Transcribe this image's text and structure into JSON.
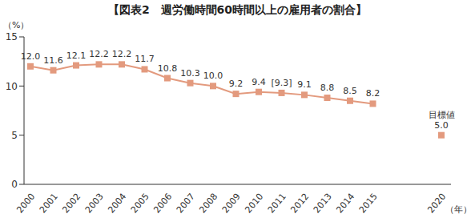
{
  "chart_data": {
    "type": "line",
    "title": "【図表2　週労働時間60時間以上の雇用者の割合】",
    "y_label": "（%）",
    "x_label": "（年）",
    "categories": [
      "2000",
      "2001",
      "2002",
      "2003",
      "2004",
      "2005",
      "2006",
      "2007",
      "2008",
      "2009",
      "2010",
      "2011",
      "2012",
      "2013",
      "2014",
      "2015",
      null,
      null,
      "2020"
    ],
    "values": [
      12.0,
      11.6,
      12.1,
      12.2,
      12.2,
      11.7,
      10.8,
      10.3,
      10.0,
      9.2,
      9.4,
      9.3,
      9.1,
      8.8,
      8.5,
      8.2,
      null,
      null,
      5.0
    ],
    "value_labels": [
      "12.0",
      "11.6",
      "12.1",
      "12.2",
      "12.2",
      "11.7",
      "10.8",
      "10.3",
      "10.0",
      "9.2",
      "9.4",
      "[9.3]",
      "9.1",
      "8.8",
      "8.5",
      "8.2",
      null,
      null,
      "5.0"
    ],
    "annotations": [
      {
        "text": "目標値",
        "category": "2020"
      }
    ],
    "ylim": [
      0,
      15
    ],
    "yticks": [
      0,
      5,
      10,
      15
    ],
    "grid": false,
    "data_labels": true,
    "color": "#e39a7e",
    "marker": "square",
    "line_style": "solid"
  }
}
